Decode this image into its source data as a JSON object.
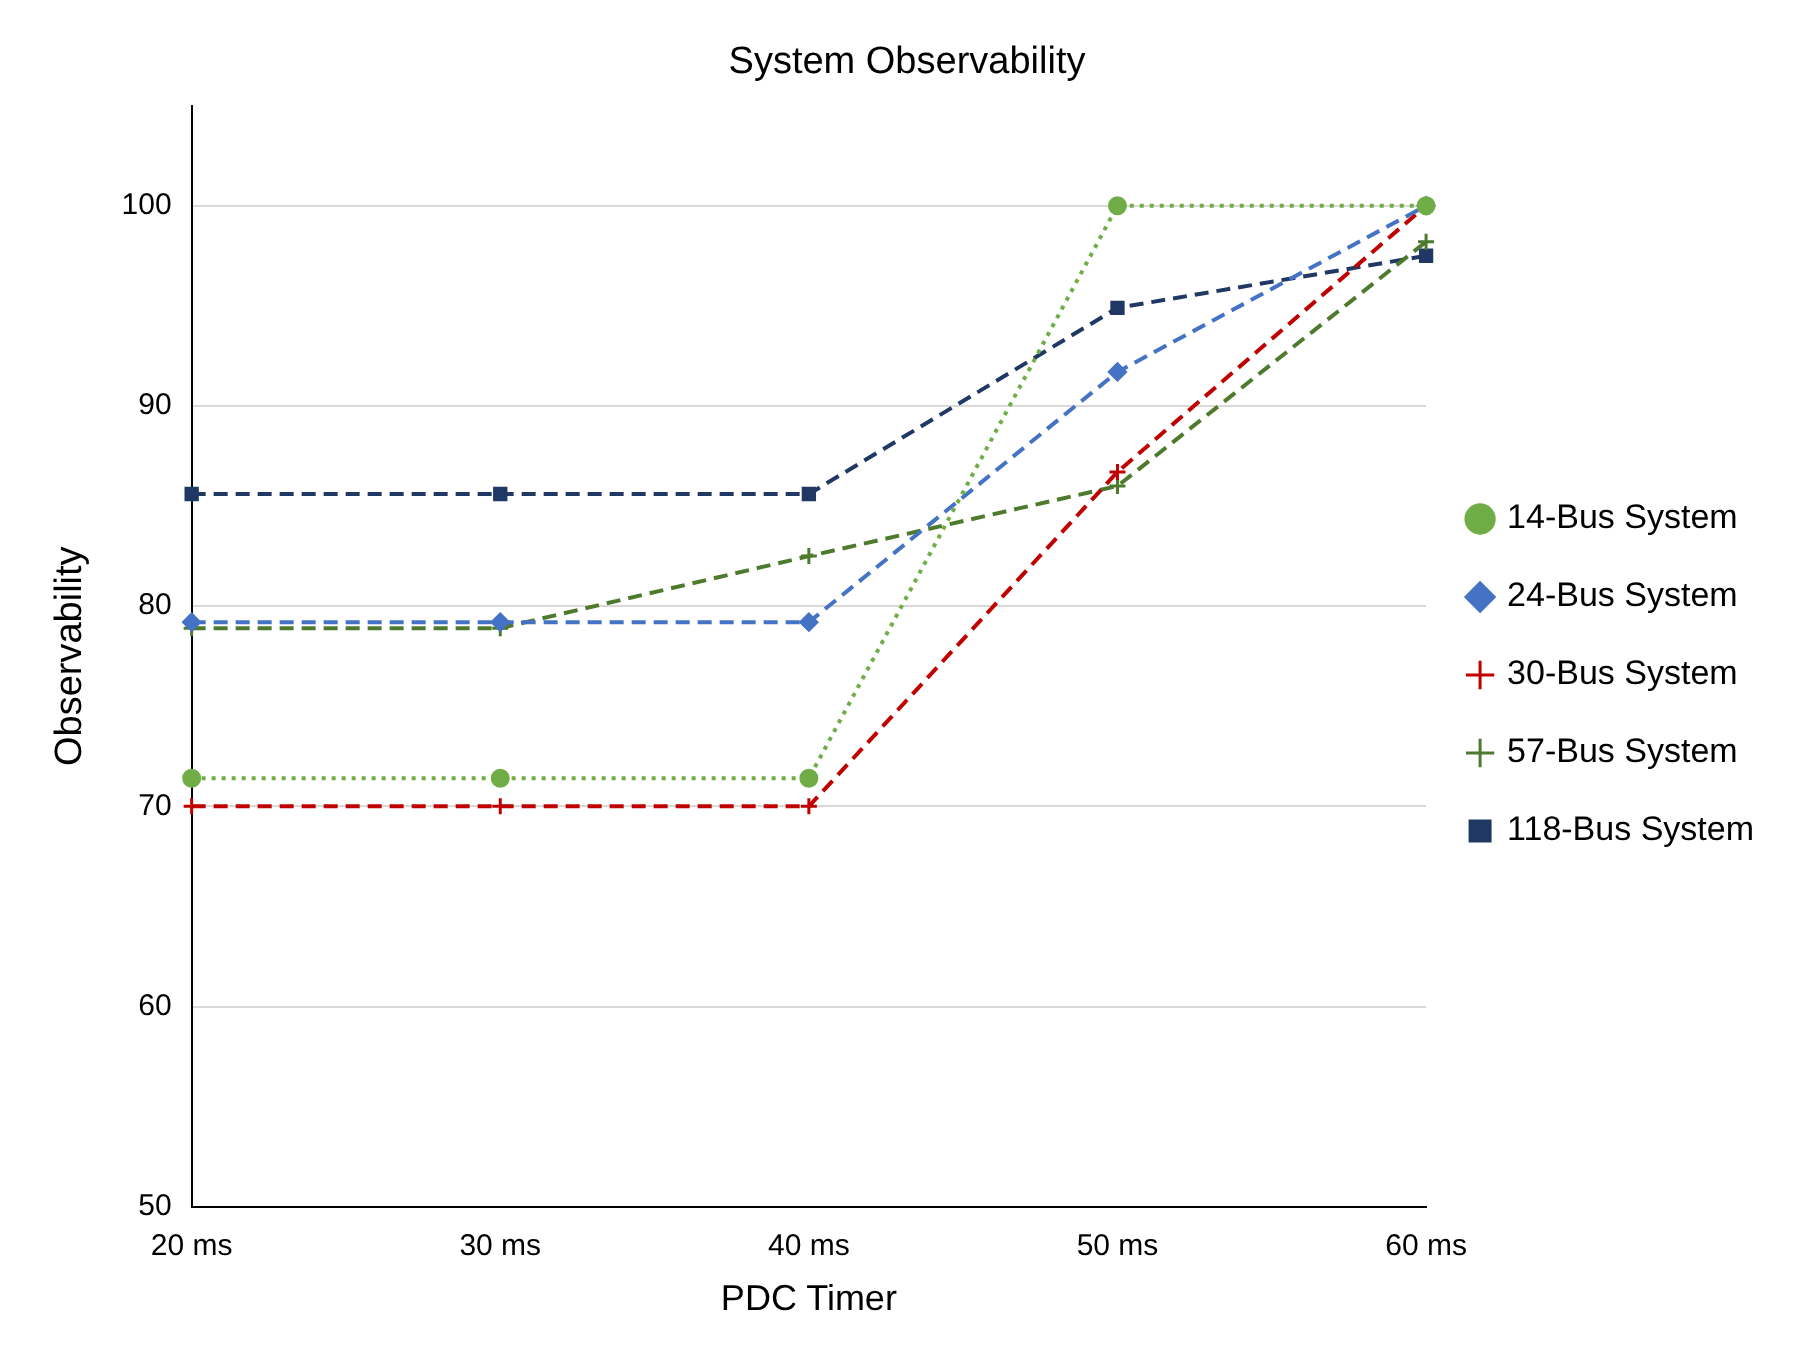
{
  "chart_data": {
    "type": "line",
    "title": "System Observability",
    "xlabel": "PDC Timer",
    "ylabel": "Observability",
    "categories": [
      "20 ms",
      "30 ms",
      "40 ms",
      "50 ms",
      "60 ms"
    ],
    "series": [
      {
        "name": "14-Bus System",
        "color": "#70ad47",
        "values": [
          71.4,
          71.4,
          71.4,
          100,
          100
        ],
        "marker": "circle",
        "line_style": "dotted"
      },
      {
        "name": "24-Bus System",
        "color": "#4472c4",
        "values": [
          79.2,
          79.2,
          79.2,
          91.7,
          100
        ],
        "marker": "diamond",
        "line_style": "dashed"
      },
      {
        "name": "30-Bus System",
        "color": "#c00000",
        "values": [
          70,
          70,
          70,
          86.7,
          100
        ],
        "marker": "cross",
        "line_style": "dashed"
      },
      {
        "name": "57-Bus System",
        "color": "#4e7a2e",
        "values": [
          78.9,
          78.9,
          82.5,
          86,
          98.2
        ],
        "marker": "cross",
        "line_style": "dashed"
      },
      {
        "name": "118-Bus System",
        "color": "#203864",
        "values": [
          85.6,
          85.6,
          85.6,
          94.9,
          97.5
        ],
        "marker": "square",
        "line_style": "dashed"
      }
    ],
    "ylim": [
      50,
      105
    ],
    "yticks": [
      50,
      60,
      70,
      80,
      90,
      100
    ],
    "grid": "y",
    "legend": "right"
  }
}
